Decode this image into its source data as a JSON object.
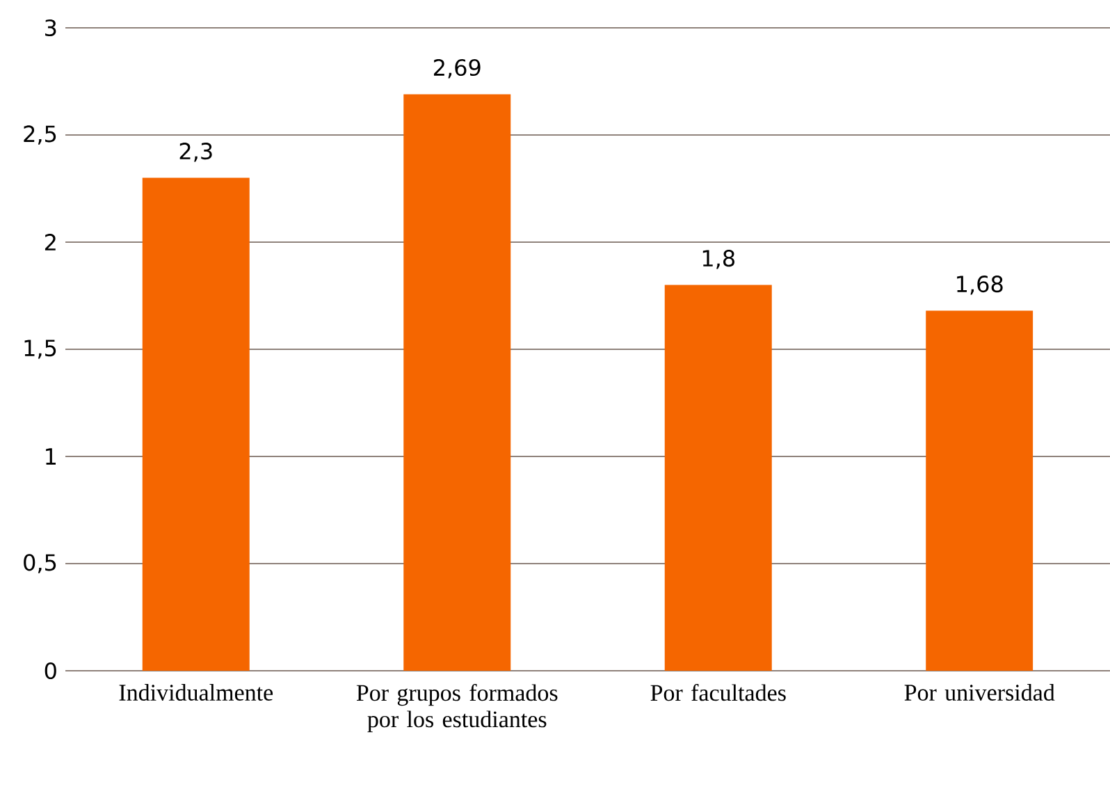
{
  "chart_data": {
    "type": "bar",
    "categories": [
      "Individualmente",
      "Por grupos formados por los estudiantes",
      "Por facultades",
      "Por universidad"
    ],
    "values": [
      2.3,
      2.69,
      1.8,
      1.68
    ],
    "value_labels": [
      "2,3",
      "2,69",
      "1,8",
      "1,68"
    ],
    "color": "#f56600",
    "ylim": [
      0,
      3
    ],
    "yticks": [
      0,
      {
        "value": 0.5,
        "label": "0,5"
      },
      1,
      {
        "value": 1.5,
        "label": "1,5"
      },
      2,
      {
        "value": 2.5,
        "label": "2,5"
      },
      3
    ],
    "grid": "y"
  }
}
